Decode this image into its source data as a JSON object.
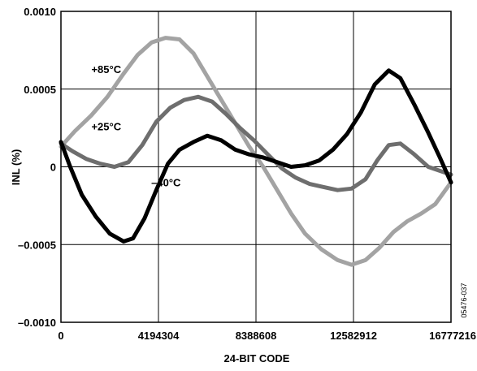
{
  "chart_data": {
    "type": "line",
    "xlabel": "24-BIT CODE",
    "ylabel": "INL (%)",
    "xlim": [
      0,
      16777216
    ],
    "ylim": [
      -0.001,
      0.001
    ],
    "grid": true,
    "x_ticks": [
      {
        "value": 0,
        "label": "0"
      },
      {
        "value": 4194304,
        "label": "4194304"
      },
      {
        "value": 8388608,
        "label": "8388608"
      },
      {
        "value": 12582912,
        "label": "12582912"
      },
      {
        "value": 16777216,
        "label": "16777216"
      }
    ],
    "y_ticks": [
      {
        "value": 0.001,
        "label": "0.0010"
      },
      {
        "value": 0.0005,
        "label": "0.0005"
      },
      {
        "value": 0,
        "label": "0"
      },
      {
        "value": -0.0005,
        "label": "–0.0005"
      },
      {
        "value": -0.001,
        "label": "–0.0010"
      }
    ],
    "figure_id": "05476-037",
    "series": [
      {
        "name": "+85°C",
        "color": "#a3a3a3",
        "label_at": {
          "x": 1950000,
          "y": 0.00063
        },
        "points": [
          [
            0,
            0.00013
          ],
          [
            600000,
            0.00023
          ],
          [
            1300000,
            0.00033
          ],
          [
            2000000,
            0.00045
          ],
          [
            2700000,
            0.0006
          ],
          [
            3300000,
            0.00072
          ],
          [
            3900000,
            0.0008
          ],
          [
            4500000,
            0.00083
          ],
          [
            5100000,
            0.00082
          ],
          [
            5700000,
            0.00073
          ],
          [
            6300000,
            0.00058
          ],
          [
            6900000,
            0.00043
          ],
          [
            7500000,
            0.00028
          ],
          [
            8100000,
            0.00013
          ],
          [
            8700000,
            0.0
          ],
          [
            9300000,
            -0.00015
          ],
          [
            9900000,
            -0.0003
          ],
          [
            10500000,
            -0.00043
          ],
          [
            11200000,
            -0.00053
          ],
          [
            11900000,
            -0.0006
          ],
          [
            12500000,
            -0.00063
          ],
          [
            13100000,
            -0.0006
          ],
          [
            13700000,
            -0.00052
          ],
          [
            14300000,
            -0.00042
          ],
          [
            14900000,
            -0.00035
          ],
          [
            15500000,
            -0.0003
          ],
          [
            16100000,
            -0.00024
          ],
          [
            16777216,
            -0.0001
          ]
        ]
      },
      {
        "name": "+25°C",
        "color": "#6e6e6e",
        "label_at": {
          "x": 1950000,
          "y": 0.00026
        },
        "points": [
          [
            0,
            0.00015
          ],
          [
            500000,
            0.0001
          ],
          [
            1100000,
            5e-05
          ],
          [
            1700000,
            2e-05
          ],
          [
            2300000,
            0.0
          ],
          [
            2900000,
            3e-05
          ],
          [
            3500000,
            0.00014
          ],
          [
            4100000,
            0.00029
          ],
          [
            4700000,
            0.00038
          ],
          [
            5300000,
            0.00043
          ],
          [
            5900000,
            0.00045
          ],
          [
            6500000,
            0.00042
          ],
          [
            7100000,
            0.00034
          ],
          [
            7700000,
            0.00025
          ],
          [
            8300000,
            0.00017
          ],
          [
            8900000,
            8e-05
          ],
          [
            9500000,
            -1e-05
          ],
          [
            10100000,
            -7e-05
          ],
          [
            10700000,
            -0.00011
          ],
          [
            11300000,
            -0.00013
          ],
          [
            11900000,
            -0.00015
          ],
          [
            12500000,
            -0.00014
          ],
          [
            13100000,
            -8e-05
          ],
          [
            13600000,
            4e-05
          ],
          [
            14100000,
            0.00014
          ],
          [
            14600000,
            0.00015
          ],
          [
            15200000,
            8e-05
          ],
          [
            15800000,
            0.0
          ],
          [
            16777216,
            -5e-05
          ]
        ]
      },
      {
        "name": "–40°C",
        "color": "#000000",
        "label_at": {
          "x": 4520000,
          "y": -0.0001
        },
        "points": [
          [
            0,
            0.00016
          ],
          [
            400000,
            0.0
          ],
          [
            900000,
            -0.00018
          ],
          [
            1500000,
            -0.00032
          ],
          [
            2100000,
            -0.00043
          ],
          [
            2700000,
            -0.00048
          ],
          [
            3100000,
            -0.00046
          ],
          [
            3600000,
            -0.00033
          ],
          [
            4100000,
            -0.00015
          ],
          [
            4600000,
            2e-05
          ],
          [
            5100000,
            0.00011
          ],
          [
            5700000,
            0.00016
          ],
          [
            6300000,
            0.0002
          ],
          [
            6900000,
            0.00017
          ],
          [
            7500000,
            0.00011
          ],
          [
            8100000,
            8e-05
          ],
          [
            8700000,
            6e-05
          ],
          [
            9300000,
            3e-05
          ],
          [
            9900000,
            0.0
          ],
          [
            10500000,
            1e-05
          ],
          [
            11100000,
            4e-05
          ],
          [
            11700000,
            0.00011
          ],
          [
            12300000,
            0.00021
          ],
          [
            12900000,
            0.00035
          ],
          [
            13500000,
            0.00053
          ],
          [
            14100000,
            0.00062
          ],
          [
            14600000,
            0.00057
          ],
          [
            15200000,
            0.0004
          ],
          [
            15800000,
            0.00022
          ],
          [
            16300000,
            6e-05
          ],
          [
            16777216,
            -0.0001
          ]
        ]
      }
    ]
  }
}
